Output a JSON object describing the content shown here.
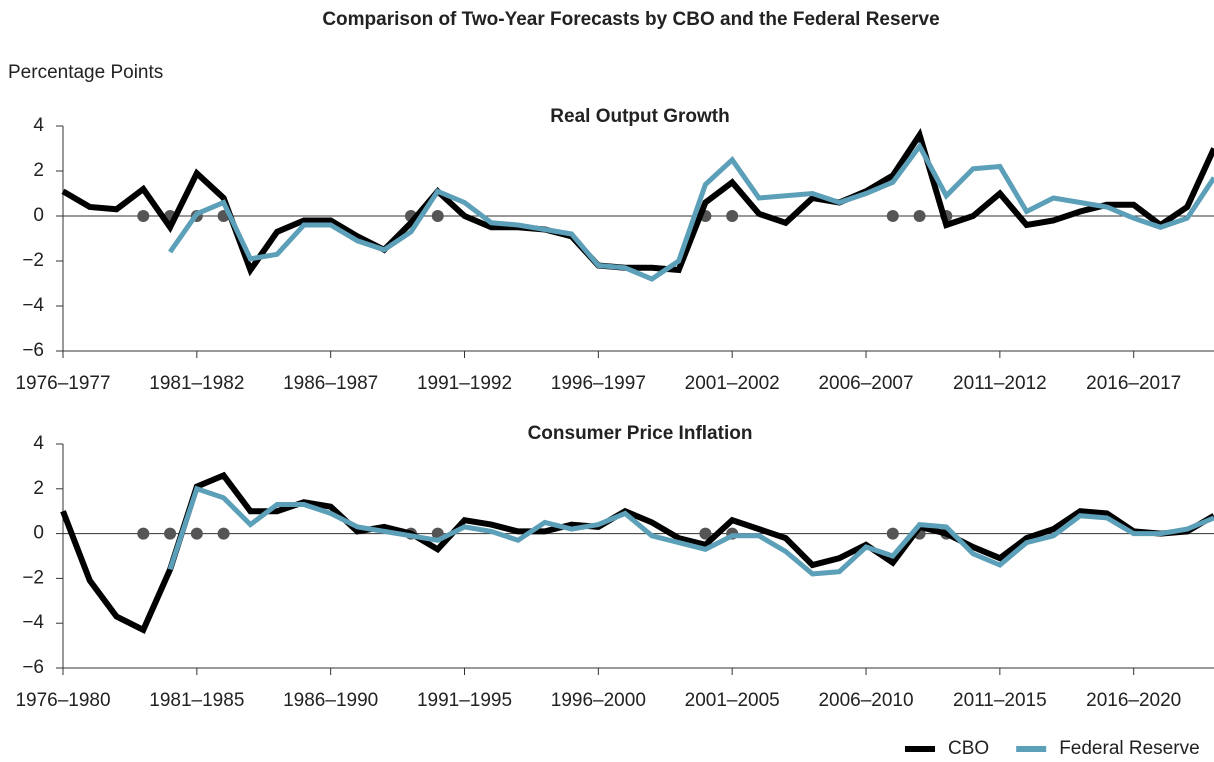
{
  "title": "Comparison of Two-Year Forecasts by CBO and the Federal Reserve",
  "ylabel": "Percentage Points",
  "chart_data": [
    {
      "type": "line",
      "title": "Real Output Growth",
      "categories": [
        "1976–1977",
        null,
        null,
        null,
        null,
        "1981–1982",
        null,
        null,
        null,
        null,
        "1986–1987",
        null,
        null,
        null,
        null,
        "1991–1992",
        null,
        null,
        null,
        null,
        "1996–1997",
        null,
        null,
        null,
        null,
        "2001–2002",
        null,
        null,
        null,
        null,
        "2006–2007",
        null,
        null,
        null,
        null,
        "2011–2012",
        null,
        null,
        null,
        null,
        "2016–2017",
        null,
        null,
        null
      ],
      "series": [
        {
          "name": "CBO",
          "color": "#000000",
          "values": [
            1.1,
            0.4,
            0.3,
            1.2,
            -0.5,
            1.9,
            0.8,
            -2.4,
            -0.7,
            -0.2,
            -0.2,
            -0.9,
            -1.5,
            -0.3,
            1.1,
            0.0,
            -0.5,
            -0.5,
            -0.6,
            -0.9,
            -2.2,
            -2.3,
            -2.3,
            -2.4,
            0.6,
            1.5,
            0.1,
            -0.3,
            0.8,
            0.6,
            1.1,
            1.8,
            3.6,
            -0.4,
            0.0,
            1.0,
            -0.4,
            -0.2,
            0.2,
            0.5,
            0.5,
            -0.4,
            0.4,
            3.0
          ]
        },
        {
          "name": "Federal Reserve",
          "color": "#5b9fb8",
          "values": [
            null,
            null,
            null,
            null,
            -1.6,
            0.1,
            0.6,
            -1.9,
            -1.7,
            -0.4,
            -0.4,
            -1.1,
            -1.5,
            -0.7,
            1.1,
            0.6,
            -0.3,
            -0.4,
            -0.6,
            -0.8,
            -2.2,
            -2.3,
            -2.8,
            -2.0,
            1.4,
            2.5,
            0.8,
            0.9,
            1.0,
            0.6,
            1.0,
            1.5,
            3.1,
            0.9,
            2.1,
            2.2,
            0.2,
            0.8,
            0.6,
            0.4,
            -0.1,
            -0.5,
            -0.1,
            1.7
          ]
        }
      ],
      "markers": [
        3,
        4,
        5,
        6,
        13,
        14,
        24,
        25,
        31,
        32,
        33
      ],
      "ylim": [
        -6,
        4
      ],
      "yticks": [
        {
          "value": -6,
          "label": "−6"
        },
        {
          "value": -4,
          "label": "−4"
        },
        {
          "value": -2,
          "label": "−2"
        },
        0,
        2,
        4
      ]
    },
    {
      "type": "line",
      "title": "Consumer Price Inflation",
      "categories": [
        "1976–1980",
        null,
        null,
        null,
        null,
        "1981–1985",
        null,
        null,
        null,
        null,
        "1986–1990",
        null,
        null,
        null,
        null,
        "1991–1995",
        null,
        null,
        null,
        null,
        "1996–2000",
        null,
        null,
        null,
        null,
        "2001–2005",
        null,
        null,
        null,
        null,
        "2006–2010",
        null,
        null,
        null,
        null,
        "2011–2015",
        null,
        null,
        null,
        null,
        "2016–2020",
        null,
        null,
        null
      ],
      "series": [
        {
          "color": "#000000",
          "values": [
            1.0,
            -2.1,
            -3.7,
            -4.3,
            -1.6,
            2.1,
            2.6,
            1.0,
            1.0,
            1.4,
            1.2,
            0.1,
            0.3,
            0.0,
            -0.7,
            0.6,
            0.4,
            0.1,
            0.1,
            0.4,
            0.3,
            1.0,
            0.5,
            -0.2,
            -0.5,
            0.6,
            0.2,
            -0.2,
            -1.4,
            -1.1,
            -0.5,
            -1.3,
            0.3,
            0.0,
            -0.6,
            -1.1,
            -0.2,
            0.2,
            1.0,
            0.9,
            0.1,
            0.0,
            0.1,
            0.8
          ]
        },
        {
          "color": "#5b9fb8",
          "values": [
            null,
            null,
            null,
            null,
            -1.6,
            2.0,
            1.6,
            0.4,
            1.3,
            1.3,
            0.9,
            0.3,
            0.1,
            -0.1,
            -0.3,
            0.3,
            0.1,
            -0.3,
            0.5,
            0.2,
            0.4,
            0.9,
            -0.1,
            -0.4,
            -0.7,
            -0.1,
            -0.1,
            -0.8,
            -1.8,
            -1.7,
            -0.6,
            -1.0,
            0.4,
            0.3,
            -0.9,
            -1.4,
            -0.4,
            -0.1,
            0.8,
            0.7,
            0.0,
            0.0,
            0.2,
            0.7
          ]
        }
      ],
      "markers": [
        3,
        4,
        5,
        6,
        13,
        14,
        24,
        25,
        31,
        32,
        33
      ],
      "ylim": [
        -6,
        4
      ],
      "yticks": [
        {
          "value": -6,
          "label": "−6"
        },
        {
          "value": -4,
          "label": "−4"
        },
        {
          "value": -2,
          "label": "−2"
        },
        0,
        2,
        4
      ]
    }
  ]
}
